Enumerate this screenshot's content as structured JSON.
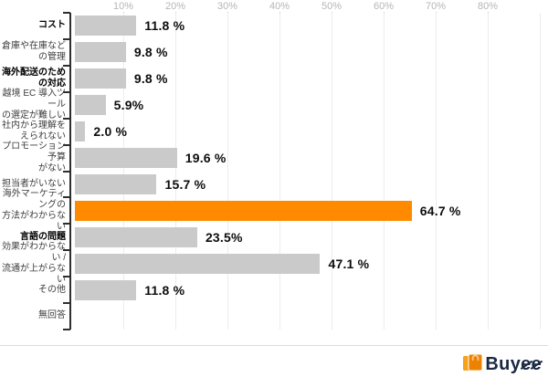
{
  "chart_data": {
    "type": "bar",
    "orientation": "horizontal",
    "title": "",
    "xlabel": "",
    "ylabel": "",
    "unit": "%",
    "xlim": [
      0,
      90
    ],
    "x_tick_step": 10,
    "x_tick_labels": [
      "10%",
      "20%",
      "30%",
      "40%",
      "50%",
      "60%",
      "70%",
      "80%"
    ],
    "grid": true,
    "legend": "none",
    "categories": [
      [
        "コスト"
      ],
      [
        "倉庫や在庫などの管理"
      ],
      [
        "海外配送のための対応"
      ],
      [
        "越境 EC 導入ツール",
        "の選定が難しい"
      ],
      [
        "社内から理解を",
        "えられない"
      ],
      [
        "プロモーション予算",
        "がない"
      ],
      [
        "担当者がいない"
      ],
      [
        "海外マーケティングの",
        "方法がわからない"
      ],
      [
        "言語の問題"
      ],
      [
        "効果がわからない /",
        "流通が上がらない"
      ],
      [
        "その他"
      ],
      [
        "無回答"
      ]
    ],
    "values": [
      11.8,
      9.8,
      9.8,
      5.9,
      2.0,
      19.6,
      15.7,
      64.7,
      23.5,
      47.1,
      11.8,
      null
    ],
    "value_labels": [
      "11.8 %",
      "9.8 %",
      "9.8 %",
      "5.9%",
      "2.0 %",
      "19.6 %",
      "15.7 %",
      "64.7 %",
      "23.5%",
      "47.1 %",
      "11.8 %",
      ""
    ],
    "emphasized_category_indexes": [
      0,
      2,
      8
    ],
    "highlight_index": 7,
    "bar_color": "#cacaca",
    "highlight_color": "#ff8a00",
    "gridline_color": "#ececec",
    "axis_color": "#2e2e2e",
    "tick_label_color": "#b5b5b5"
  },
  "footer": {
    "brand": "Buyee",
    "brand_color": "#1b2a44",
    "brand_accent": "#ee8100"
  }
}
